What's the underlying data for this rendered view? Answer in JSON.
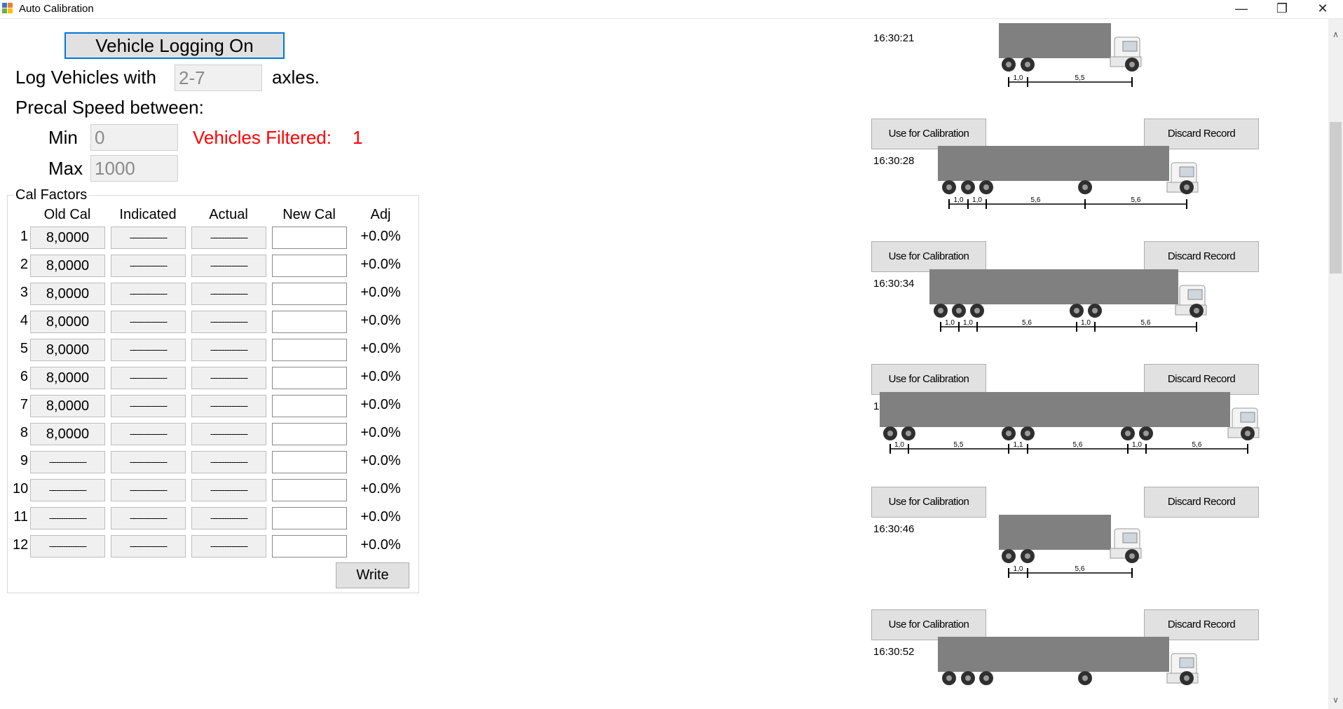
{
  "window": {
    "title": "Auto Calibration",
    "minimize_glyph": "—",
    "maximize_glyph": "❐",
    "close_glyph": "✕"
  },
  "settings": {
    "logging_button": "Vehicle Logging On",
    "log_prefix": "Log Vehicles with",
    "axles_value": "2-7",
    "log_suffix": "axles.",
    "precal_label": "Precal Speed between:",
    "min_label": "Min",
    "min_value": "0",
    "max_label": "Max",
    "max_value": "1000",
    "filtered_text": "Vehicles Filtered:",
    "filtered_count": "1"
  },
  "cal": {
    "group_label": "Cal Factors",
    "headers": [
      "Old Cal",
      "Indicated",
      "Actual",
      "New Cal",
      "Adj"
    ],
    "rows": [
      {
        "index": "1",
        "old_cal": "8,0000",
        "indicated": "----------------",
        "actual": "----------------",
        "new_cal": "",
        "adj": "+0.0%"
      },
      {
        "index": "2",
        "old_cal": "8,0000",
        "indicated": "----------------",
        "actual": "----------------",
        "new_cal": "",
        "adj": "+0.0%"
      },
      {
        "index": "3",
        "old_cal": "8,0000",
        "indicated": "----------------",
        "actual": "----------------",
        "new_cal": "",
        "adj": "+0.0%"
      },
      {
        "index": "4",
        "old_cal": "8,0000",
        "indicated": "----------------",
        "actual": "----------------",
        "new_cal": "",
        "adj": "+0.0%"
      },
      {
        "index": "5",
        "old_cal": "8,0000",
        "indicated": "----------------",
        "actual": "----------------",
        "new_cal": "",
        "adj": "+0.0%"
      },
      {
        "index": "6",
        "old_cal": "8,0000",
        "indicated": "----------------",
        "actual": "----------------",
        "new_cal": "",
        "adj": "+0.0%"
      },
      {
        "index": "7",
        "old_cal": "8,0000",
        "indicated": "----------------",
        "actual": "----------------",
        "new_cal": "",
        "adj": "+0.0%"
      },
      {
        "index": "8",
        "old_cal": "8,0000",
        "indicated": "----------------",
        "actual": "----------------",
        "new_cal": "",
        "adj": "+0.0%"
      },
      {
        "index": "9",
        "old_cal": "----------------",
        "indicated": "----------------",
        "actual": "----------------",
        "new_cal": "",
        "adj": "+0.0%"
      },
      {
        "index": "10",
        "old_cal": "----------------",
        "indicated": "----------------",
        "actual": "----------------",
        "new_cal": "",
        "adj": "+0.0%"
      },
      {
        "index": "11",
        "old_cal": "----------------",
        "indicated": "----------------",
        "actual": "----------------",
        "new_cal": "",
        "adj": "+0.0%"
      },
      {
        "index": "12",
        "old_cal": "----------------",
        "indicated": "----------------",
        "actual": "----------------",
        "new_cal": "",
        "adj": "+0.0%"
      }
    ],
    "write_button": "Write"
  },
  "records": [
    {
      "time": "16:30:21",
      "spacings": [
        "1,0",
        "5,5"
      ],
      "use_button": "Use for Calibration",
      "discard_button": "Discard Record"
    },
    {
      "time": "16:30:28",
      "spacings": [
        "1,0",
        "1,0",
        "5,6",
        "5,6"
      ],
      "use_button": "Use for Calibration",
      "discard_button": "Discard Record"
    },
    {
      "time": "16:30:34",
      "spacings": [
        "1,0",
        "1,0",
        "5,6",
        "1,0",
        "5,6"
      ],
      "use_button": "Use for Calibration",
      "discard_button": "Discard Record"
    },
    {
      "time": "16:30:41",
      "spacings": [
        "1,0",
        "5,5",
        "1,1",
        "5,6",
        "1,0",
        "5,6"
      ],
      "use_button": "Use for Calibration",
      "discard_button": "Discard Record"
    },
    {
      "time": "16:30:46",
      "spacings": [
        "1,0",
        "5,6"
      ],
      "use_button": "Use for Calibration",
      "discard_button": "Discard Record"
    },
    {
      "time": "16:30:52",
      "spacings": [],
      "use_button": "",
      "discard_button": ""
    }
  ],
  "icons": {
    "app": "app-icon",
    "scroll_up": "∧",
    "scroll_down": "∨"
  },
  "colors": {
    "filtered": "#ff0000",
    "trailer": "#808080",
    "focus": "#0078d7"
  }
}
